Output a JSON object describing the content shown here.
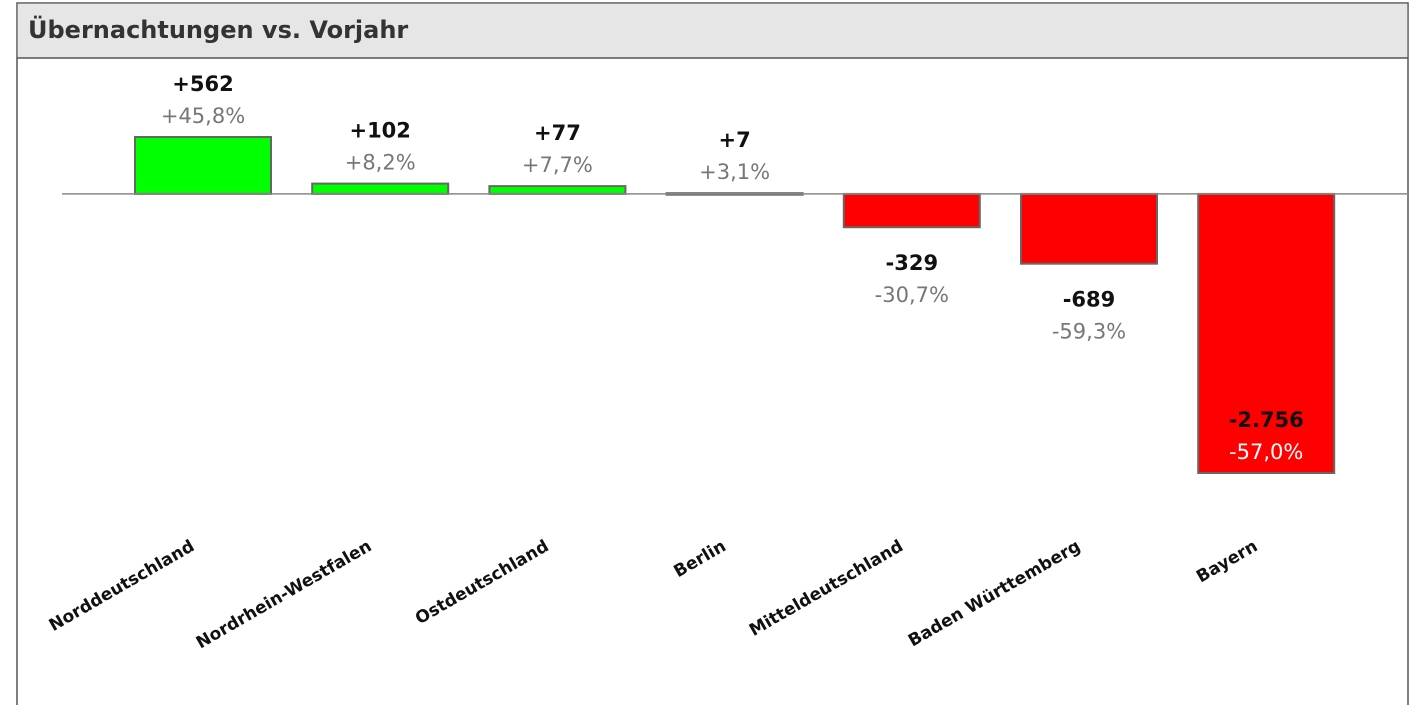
{
  "chart_data": {
    "type": "bar",
    "title": "Übernachtungen vs. Vorjahr",
    "categories": [
      "Norddeutschland",
      "Nordrhein-Westfalen",
      "Ostdeutschland",
      "Berlin",
      "Mitteldeutschland",
      "Baden Württemberg",
      "Bayern"
    ],
    "values": [
      562,
      102,
      77,
      7,
      -329,
      -689,
      -2756
    ],
    "value_labels": [
      "+562",
      "+102",
      "+77",
      "+7",
      "-329",
      "-689",
      "-2.756"
    ],
    "percent_changes": [
      45.8,
      8.2,
      7.7,
      3.1,
      -30.7,
      -59.3,
      -57.0
    ],
    "percent_labels": [
      "+45,8%",
      "+8,2%",
      "+7,7%",
      "+3,1%",
      "-30,7%",
      "-59,3%",
      "-57,0%"
    ],
    "positive_color": "#00ff00",
    "negative_color": "#ff0000"
  }
}
